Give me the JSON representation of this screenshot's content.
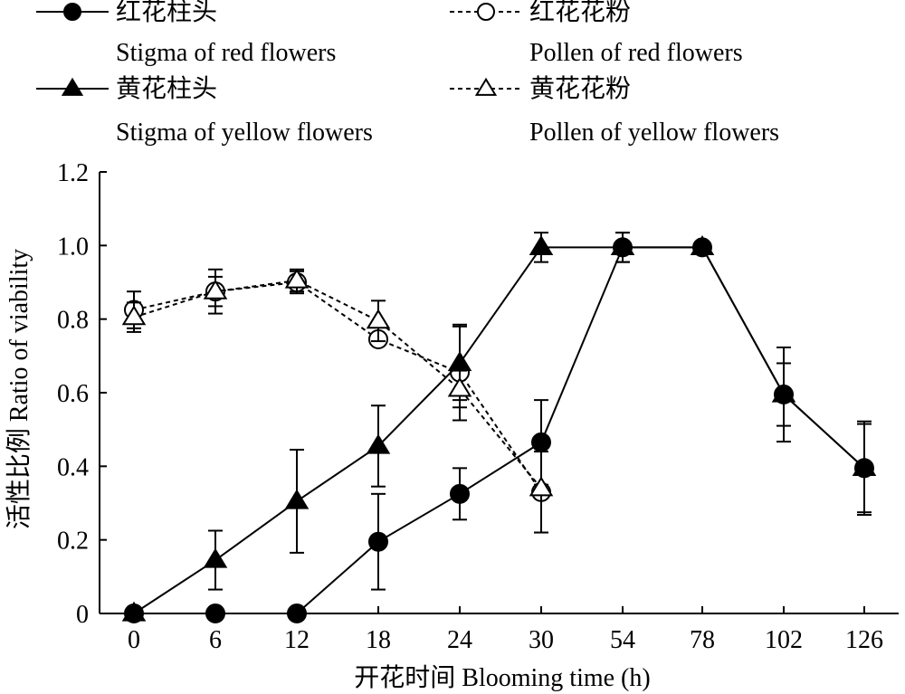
{
  "chart_data": {
    "type": "line",
    "x_categories": [
      "0",
      "6",
      "12",
      "18",
      "24",
      "30",
      "54",
      "78",
      "102",
      "126"
    ],
    "xlabel": "开花时间 Blooming time (h)",
    "ylabel": "活性比例 Ratio of viability",
    "ylim": [
      0,
      1.2
    ],
    "yticks": [
      "0",
      "0.2",
      "0.4",
      "0.6",
      "0.8",
      "1.0",
      "1.2"
    ],
    "legend_position": "top",
    "series": [
      {
        "name_cn": "红花柱头",
        "name_en": "Stigma of red flowers",
        "marker": "filled-circle",
        "line": "solid",
        "x": [
          "0",
          "6",
          "12",
          "18",
          "24",
          "30",
          "54",
          "78",
          "102",
          "126"
        ],
        "values": [
          0,
          0,
          0,
          0.195,
          0.325,
          0.465,
          0.995,
          0.995,
          0.595,
          0.395
        ],
        "errors": [
          0,
          0,
          0,
          0.13,
          0.07,
          0.115,
          0.04,
          0,
          0.128,
          0.127
        ]
      },
      {
        "name_cn": "红花花粉",
        "name_en": "Pollen of red flowers",
        "marker": "open-circle",
        "line": "dashed",
        "x": [
          "0",
          "6",
          "12",
          "18",
          "24",
          "30"
        ],
        "values": [
          0.825,
          0.875,
          0.9,
          0.745,
          0.655,
          0.33
        ],
        "errors": [
          0.05,
          0.04,
          0.03,
          0,
          0.13,
          0.11
        ]
      },
      {
        "name_cn": "黄花柱头",
        "name_en": "Stigma of yellow flowers",
        "marker": "filled-triangle",
        "line": "solid",
        "x": [
          "0",
          "6",
          "12",
          "18",
          "24",
          "30",
          "54",
          "78",
          "102",
          "126"
        ],
        "values": [
          0,
          0.145,
          0.305,
          0.455,
          0.68,
          0.995,
          0.995,
          0.995,
          0.595,
          0.395
        ],
        "errors": [
          0,
          0.08,
          0.14,
          0.11,
          0.1,
          0.04,
          0.04,
          0,
          0.085,
          0.12
        ]
      },
      {
        "name_cn": "黄花花粉",
        "name_en": "Pollen of yellow flowers",
        "marker": "open-triangle",
        "line": "dashed",
        "x": [
          "0",
          "6",
          "12",
          "18",
          "24",
          "30"
        ],
        "values": [
          0.805,
          0.875,
          0.905,
          0.795,
          0.61,
          0.34
        ],
        "errors": [
          0.04,
          0.06,
          0.03,
          0.055,
          0.05,
          0.12
        ]
      }
    ]
  }
}
